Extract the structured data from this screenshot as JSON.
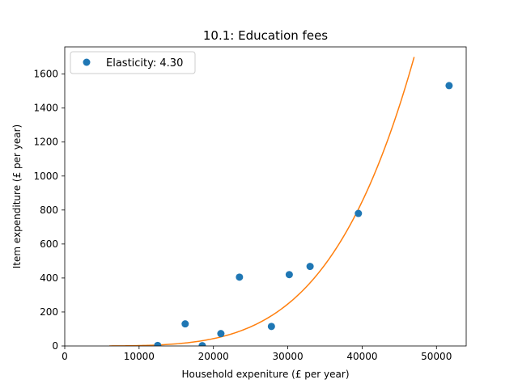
{
  "chart_data": {
    "type": "scatter",
    "title": "10.1: Education fees",
    "xlabel": "Household expeniture (£ per year)",
    "ylabel": "Item expenditure (£ per year)",
    "xlim": [
      0,
      54000
    ],
    "ylim": [
      0,
      1760
    ],
    "xticks": [
      0,
      10000,
      20000,
      30000,
      40000,
      50000
    ],
    "yticks": [
      0,
      200,
      400,
      600,
      800,
      1000,
      1200,
      1400,
      1600
    ],
    "grid": false,
    "legend_position": "top-left",
    "series": [
      {
        "name": "Elasticity: 4.30",
        "kind": "points",
        "color": "#1f77b4",
        "points": [
          {
            "x": 12500,
            "y": 3
          },
          {
            "x": 16200,
            "y": 130
          },
          {
            "x": 18500,
            "y": 2
          },
          {
            "x": 21000,
            "y": 73
          },
          {
            "x": 23500,
            "y": 405
          },
          {
            "x": 27800,
            "y": 115
          },
          {
            "x": 30200,
            "y": 420
          },
          {
            "x": 33000,
            "y": 468
          },
          {
            "x": 39500,
            "y": 780
          },
          {
            "x": 51700,
            "y": 1532
          }
        ]
      },
      {
        "kind": "fit-curve",
        "color": "#ff7f0e",
        "elasticity": 4.3,
        "x_range": [
          6000,
          47000
        ],
        "anchor": {
          "x": 40000,
          "y": 850
        }
      }
    ]
  }
}
